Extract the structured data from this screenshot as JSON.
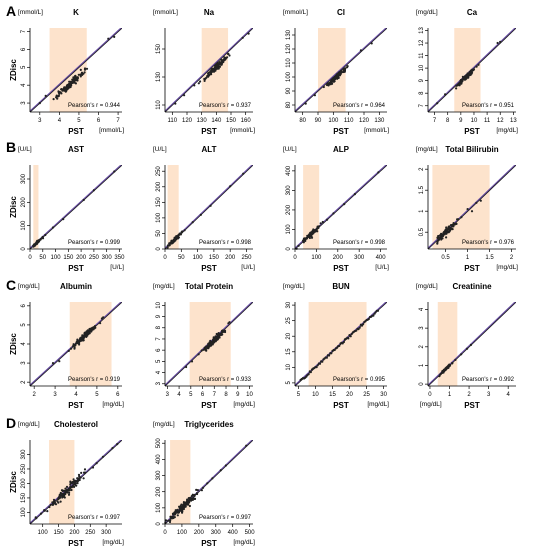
{
  "colors": {
    "band": "#fde3cc",
    "fit": "#6a4fa6",
    "identity": "#1a1a1a",
    "point": "#222222"
  },
  "x_axis_name": "PST",
  "y_axis_name": "ZDisc",
  "panel_letters": [
    "A",
    "B",
    "C",
    "D"
  ],
  "chart_data": [
    {
      "type": "scatter",
      "row": 0,
      "col": 0,
      "title": "K",
      "unit": "[mmol/L]",
      "xlim": [
        2.5,
        7.2
      ],
      "ylim": [
        2.5,
        7.2
      ],
      "xticks": [
        3,
        4,
        5,
        6,
        7
      ],
      "yticks": [
        3,
        4,
        5,
        6,
        7
      ],
      "band": [
        3.5,
        5.4
      ],
      "r_label": "Pearson's r = 0.944",
      "show_xlabel": true,
      "show_ylabel": true,
      "xunit_pos": "right",
      "yunit_pos": "top",
      "cx": [
        4.5,
        4.0
      ],
      "spread": 0.35,
      "n": 120,
      "extra": [
        [
          3.0,
          3.0
        ],
        [
          6.8,
          6.7
        ],
        [
          6.5,
          6.6
        ],
        [
          3.3,
          3.4
        ]
      ]
    },
    {
      "type": "scatter",
      "row": 0,
      "col": 1,
      "title": "Na",
      "unit": "[mmol/L]",
      "xlim": [
        105,
        165
      ],
      "ylim": [
        105,
        165
      ],
      "xticks": [
        110,
        120,
        130,
        140,
        150,
        160
      ],
      "yticks": [
        110,
        130,
        150
      ],
      "band": [
        130,
        148
      ],
      "r_label": "Pearson's r = 0.937",
      "show_xlabel": true,
      "show_ylabel": false,
      "xunit_pos": "right",
      "yunit_pos": "top",
      "cx": [
        140,
        137
      ],
      "spread": 4,
      "n": 110,
      "extra": [
        [
          112,
          111
        ],
        [
          118,
          117
        ],
        [
          158,
          158
        ],
        [
          162,
          161
        ],
        [
          125,
          124
        ]
      ]
    },
    {
      "type": "scatter",
      "row": 0,
      "col": 2,
      "title": "Cl",
      "unit": "[mmol/L]",
      "xlim": [
        75,
        135
      ],
      "ylim": [
        75,
        135
      ],
      "xticks": [
        80,
        90,
        100,
        110,
        120,
        130
      ],
      "yticks": [
        80,
        90,
        100,
        110,
        120,
        130
      ],
      "band": [
        90,
        108
      ],
      "r_label": "Pearson's r = 0.964",
      "show_xlabel": true,
      "show_ylabel": false,
      "xunit_pos": "right",
      "yunit_pos": "top",
      "cx": [
        102,
        100
      ],
      "spread": 3,
      "n": 100,
      "extra": [
        [
          82,
          81
        ],
        [
          88,
          87
        ],
        [
          118,
          119
        ],
        [
          125,
          124
        ]
      ]
    },
    {
      "type": "scatter",
      "row": 0,
      "col": 3,
      "title": "Ca",
      "unit": "[mg/dL]",
      "xlim": [
        6.5,
        13.2
      ],
      "ylim": [
        6.5,
        13.2
      ],
      "xticks": [
        7,
        8,
        9,
        10,
        11,
        12,
        13
      ],
      "yticks": [
        7,
        8,
        9,
        10,
        11,
        12,
        13
      ],
      "band": [
        8.5,
        10.5
      ],
      "r_label": "Pearson's r = 0.951",
      "show_xlabel": true,
      "show_ylabel": false,
      "xunit_pos": "right",
      "yunit_pos": "top",
      "cx": [
        9.4,
        9.3
      ],
      "spread": 0.35,
      "n": 110,
      "extra": [
        [
          7.2,
          7.2
        ],
        [
          7.8,
          7.9
        ],
        [
          12.0,
          12.1
        ],
        [
          11.8,
          12.0
        ]
      ]
    },
    {
      "type": "scatter",
      "row": 1,
      "col": 0,
      "title": "AST",
      "unit": "[U/L]",
      "xlim": [
        0,
        360
      ],
      "ylim": [
        0,
        360
      ],
      "xticks": [
        0,
        50,
        100,
        150,
        200,
        250,
        300,
        350
      ],
      "yticks": [
        0,
        100,
        200,
        300
      ],
      "band": [
        13,
        33
      ],
      "r_label": "Pearson's r = 0.999",
      "show_xlabel": true,
      "show_ylabel": true,
      "xunit_pos": "right",
      "yunit_pos": "top",
      "cx": [
        28,
        27
      ],
      "spread": 8,
      "n": 70,
      "extra": [
        [
          60,
          60
        ],
        [
          90,
          92
        ],
        [
          130,
          128
        ],
        [
          210,
          210
        ],
        [
          250,
          252
        ],
        [
          330,
          332
        ]
      ]
    },
    {
      "type": "scatter",
      "row": 1,
      "col": 1,
      "title": "ALT",
      "unit": "[U/L]",
      "xlim": [
        0,
        270
      ],
      "ylim": [
        0,
        270
      ],
      "xticks": [
        0,
        50,
        100,
        150,
        200,
        250
      ],
      "yticks": [
        0,
        50,
        100,
        150,
        200,
        250
      ],
      "band": [
        8,
        42
      ],
      "r_label": "Pearson's r = 0.998",
      "show_xlabel": true,
      "show_ylabel": false,
      "xunit_pos": "right",
      "yunit_pos": "top",
      "cx": [
        25,
        25
      ],
      "spread": 10,
      "n": 70,
      "extra": [
        [
          60,
          60
        ],
        [
          85,
          86
        ],
        [
          110,
          110
        ],
        [
          140,
          139
        ],
        [
          200,
          202
        ],
        [
          240,
          242
        ]
      ]
    },
    {
      "type": "scatter",
      "row": 1,
      "col": 2,
      "title": "ALP",
      "unit": "[U/L]",
      "xlim": [
        0,
        430
      ],
      "ylim": [
        0,
        430
      ],
      "xticks": [
        0,
        100,
        200,
        300,
        400
      ],
      "yticks": [
        0,
        100,
        200,
        300,
        400
      ],
      "band": [
        38,
        113
      ],
      "r_label": "Pearson's r = 0.998",
      "show_xlabel": true,
      "show_ylabel": false,
      "xunit_pos": "right",
      "yunit_pos": "top",
      "cx": [
        75,
        75
      ],
      "spread": 22,
      "n": 80,
      "extra": [
        [
          150,
          150
        ],
        [
          180,
          182
        ],
        [
          230,
          230
        ],
        [
          280,
          281
        ],
        [
          390,
          392
        ]
      ]
    },
    {
      "type": "scatter",
      "row": 1,
      "col": 3,
      "title": "Total Bilirubin",
      "unit": "[mg/dL]",
      "xlim": [
        0.1,
        2.1
      ],
      "ylim": [
        0.1,
        2.1
      ],
      "xticks": [
        0.5,
        1.0,
        1.5,
        2.0
      ],
      "yticks": [
        0.5,
        1.0,
        1.5,
        2.0
      ],
      "band": [
        0.2,
        1.5
      ],
      "r_label": "Pearson's r = 0.976",
      "show_xlabel": true,
      "show_ylabel": false,
      "xunit_pos": "right",
      "yunit_pos": "top",
      "cx": [
        0.55,
        0.55
      ],
      "spread": 0.15,
      "n": 90,
      "extra": [
        [
          1.0,
          1.05
        ],
        [
          1.1,
          1.0
        ],
        [
          1.2,
          1.2
        ],
        [
          1.3,
          1.25
        ]
      ]
    },
    {
      "type": "scatter",
      "row": 2,
      "col": 0,
      "title": "Albumin",
      "unit": "[mg/dL]",
      "xlim": [
        1.8,
        6.2
      ],
      "ylim": [
        1.8,
        6.2
      ],
      "xticks": [
        2,
        3,
        4,
        5,
        6
      ],
      "yticks": [
        2,
        3,
        4,
        5,
        6
      ],
      "band": [
        3.7,
        5.7
      ],
      "r_label": "Pearson's r = 0.919",
      "show_xlabel": true,
      "show_ylabel": true,
      "xunit_pos": "right",
      "yunit_pos": "top",
      "cx": [
        4.4,
        4.4
      ],
      "spread": 0.28,
      "n": 120,
      "extra": [
        [
          2.9,
          3.0
        ],
        [
          3.2,
          3.1
        ],
        [
          5.3,
          5.4
        ]
      ]
    },
    {
      "type": "scatter",
      "row": 2,
      "col": 1,
      "title": "Total Protein",
      "unit": "[mg/dL]",
      "xlim": [
        2.8,
        10.3
      ],
      "ylim": [
        2.8,
        10.3
      ],
      "xticks": [
        3,
        4,
        5,
        6,
        7,
        8,
        9,
        10
      ],
      "yticks": [
        3,
        4,
        5,
        6,
        7,
        8,
        9,
        10
      ],
      "band": [
        4.9,
        8.4
      ],
      "r_label": "Pearson's r = 0.933",
      "show_xlabel": true,
      "show_ylabel": false,
      "xunit_pos": "right",
      "yunit_pos": "top",
      "cx": [
        7.0,
        6.9
      ],
      "spread": 0.45,
      "n": 130,
      "extra": [
        [
          4.6,
          4.5
        ],
        [
          5.1,
          5.0
        ],
        [
          8.3,
          8.5
        ],
        [
          8.2,
          8.4
        ]
      ]
    },
    {
      "type": "scatter",
      "row": 2,
      "col": 2,
      "title": "BUN",
      "unit": "[mg/dL]",
      "xlim": [
        4,
        31
      ],
      "ylim": [
        4,
        31
      ],
      "xticks": [
        5,
        10,
        15,
        20,
        25,
        30
      ],
      "yticks": [
        5,
        10,
        15,
        20,
        25,
        30
      ],
      "band": [
        8,
        25
      ],
      "r_label": "Pearson's r = 0.995",
      "show_xlabel": true,
      "show_ylabel": false,
      "xunit_pos": "right",
      "yunit_pos": "top",
      "cx": [
        14,
        14
      ],
      "spread": 0,
      "n": 0,
      "linear": [
        6,
        28,
        0.4
      ],
      "extra": []
    },
    {
      "type": "scatter",
      "row": 2,
      "col": 3,
      "title": "Creatinine",
      "unit": "[mg/dL]",
      "xlim": [
        -0.1,
        4.4
      ],
      "ylim": [
        -0.1,
        4.4
      ],
      "xticks": [
        0,
        1,
        2,
        3,
        4
      ],
      "yticks": [
        0,
        1,
        2,
        3,
        4
      ],
      "band": [
        0.4,
        1.4
      ],
      "r_label": "Pearson's r = 0.992",
      "show_xlabel": true,
      "show_ylabel": false,
      "xunit_pos": "left",
      "yunit_pos": "top",
      "cx": [
        0.8,
        0.8
      ],
      "spread": 0.12,
      "n": 80,
      "extra": [
        [
          1.3,
          1.3
        ],
        [
          1.6,
          1.6
        ],
        [
          1.9,
          1.9
        ],
        [
          2.1,
          2.1
        ]
      ]
    },
    {
      "type": "scatter",
      "row": 3,
      "col": 0,
      "title": "Cholesterol",
      "unit": "[mg/dL]",
      "xlim": [
        60,
        350
      ],
      "ylim": [
        60,
        350
      ],
      "xticks": [
        100,
        150,
        200,
        250,
        300
      ],
      "yticks": [
        100,
        150,
        200,
        250,
        300
      ],
      "band": [
        120,
        200
      ],
      "r_label": "Pearson's r = 0.997",
      "show_xlabel": true,
      "show_ylabel": true,
      "xunit_pos": "right",
      "yunit_pos": "top",
      "cx": [
        175,
        175
      ],
      "spread": 30,
      "n": 110,
      "extra": [
        [
          80,
          80
        ],
        [
          95,
          96
        ],
        [
          270,
          270
        ],
        [
          290,
          292
        ],
        [
          320,
          322
        ],
        [
          335,
          336
        ]
      ]
    },
    {
      "type": "scatter",
      "row": 3,
      "col": 1,
      "title": "Triglycerides",
      "unit": "[mg/dL]",
      "xlim": [
        0,
        520
      ],
      "ylim": [
        0,
        520
      ],
      "xticks": [
        0,
        100,
        200,
        300,
        400,
        500
      ],
      "yticks": [
        0,
        100,
        200,
        300,
        400,
        500
      ],
      "band": [
        30,
        150
      ],
      "r_label": "Pearson's r = 0.997",
      "show_xlabel": true,
      "show_ylabel": false,
      "xunit_pos": "right",
      "yunit_pos": "top",
      "cx": [
        110,
        110
      ],
      "spread": 45,
      "n": 120,
      "extra": [
        [
          250,
          252
        ],
        [
          280,
          282
        ],
        [
          330,
          333
        ],
        [
          360,
          362
        ],
        [
          480,
          485
        ]
      ]
    }
  ]
}
